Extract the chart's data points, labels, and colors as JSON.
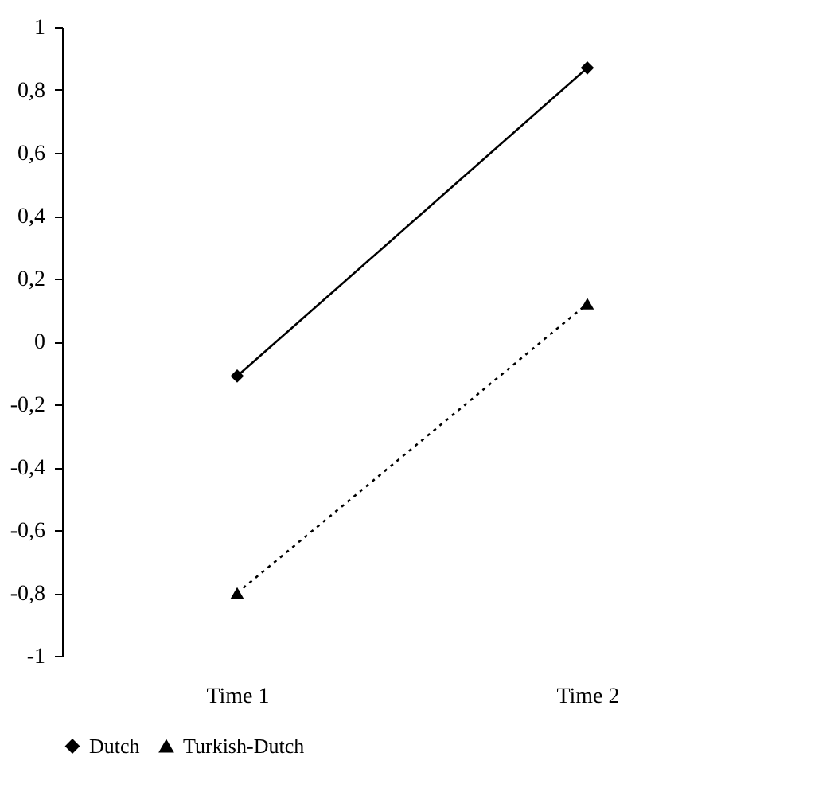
{
  "chart_data": {
    "type": "line",
    "categories": [
      "Time 1",
      "Time 2"
    ],
    "series": [
      {
        "name": "Dutch",
        "color": "#000000",
        "values": [
          -0.11,
          0.87
        ],
        "marker": "diamond",
        "line_style": "solid"
      },
      {
        "name": "Turkish-Dutch",
        "color": "#000000",
        "values": [
          -0.8,
          0.12
        ],
        "marker": "triangle",
        "line_style": "dotted"
      }
    ],
    "ylim": [
      -1,
      1
    ],
    "yticks": [
      {
        "value": -1,
        "label": "-1"
      },
      {
        "value": -0.8,
        "label": "-0,8"
      },
      {
        "value": -0.6,
        "label": "-0,6"
      },
      {
        "value": -0.4,
        "label": "-0,4"
      },
      {
        "value": -0.2,
        "label": "-0,2"
      },
      {
        "value": 0,
        "label": "0"
      },
      {
        "value": 0.2,
        "label": "0,2"
      },
      {
        "value": 0.4,
        "label": "0,4"
      },
      {
        "value": 0.6,
        "label": "0,6"
      },
      {
        "value": 0.8,
        "label": "0,8"
      },
      {
        "value": 1,
        "label": "1"
      }
    ],
    "grid": false,
    "legend": "bottom"
  }
}
